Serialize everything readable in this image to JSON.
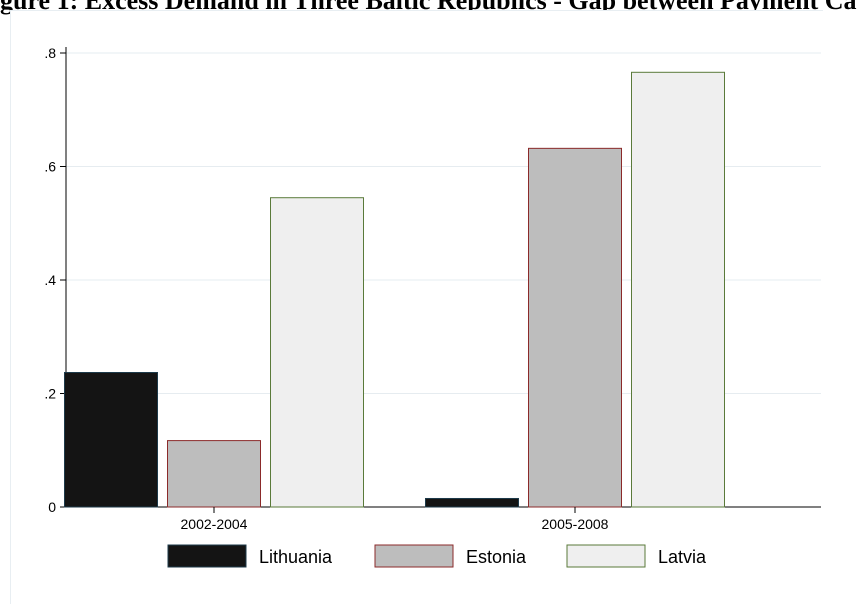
{
  "page": {
    "title": "gure 1: Excess Demand in Three Baltic Republics - Gap between Payment Ca"
  },
  "chart_data": {
    "type": "bar",
    "categories": [
      "2002-2004",
      "2005-2008"
    ],
    "series": [
      {
        "name": "Lithuania",
        "values": [
          0.237,
          0.015
        ],
        "fill": "#141414",
        "stroke": "#1d3a4a"
      },
      {
        "name": "Estonia",
        "values": [
          0.117,
          0.632
        ],
        "fill": "#bdbdbd",
        "stroke": "#8b2a2a"
      },
      {
        "name": "Latvia",
        "values": [
          0.545,
          0.766
        ],
        "fill": "#efefef",
        "stroke": "#5a7a3a"
      }
    ],
    "yticks": [
      0,
      0.2,
      0.4,
      0.6,
      0.8
    ],
    "ytick_labels": [
      "0",
      ".2",
      ".4",
      ".6",
      ".8"
    ],
    "ylim": [
      0,
      0.8
    ],
    "grid": true,
    "legend_position": "bottom"
  }
}
